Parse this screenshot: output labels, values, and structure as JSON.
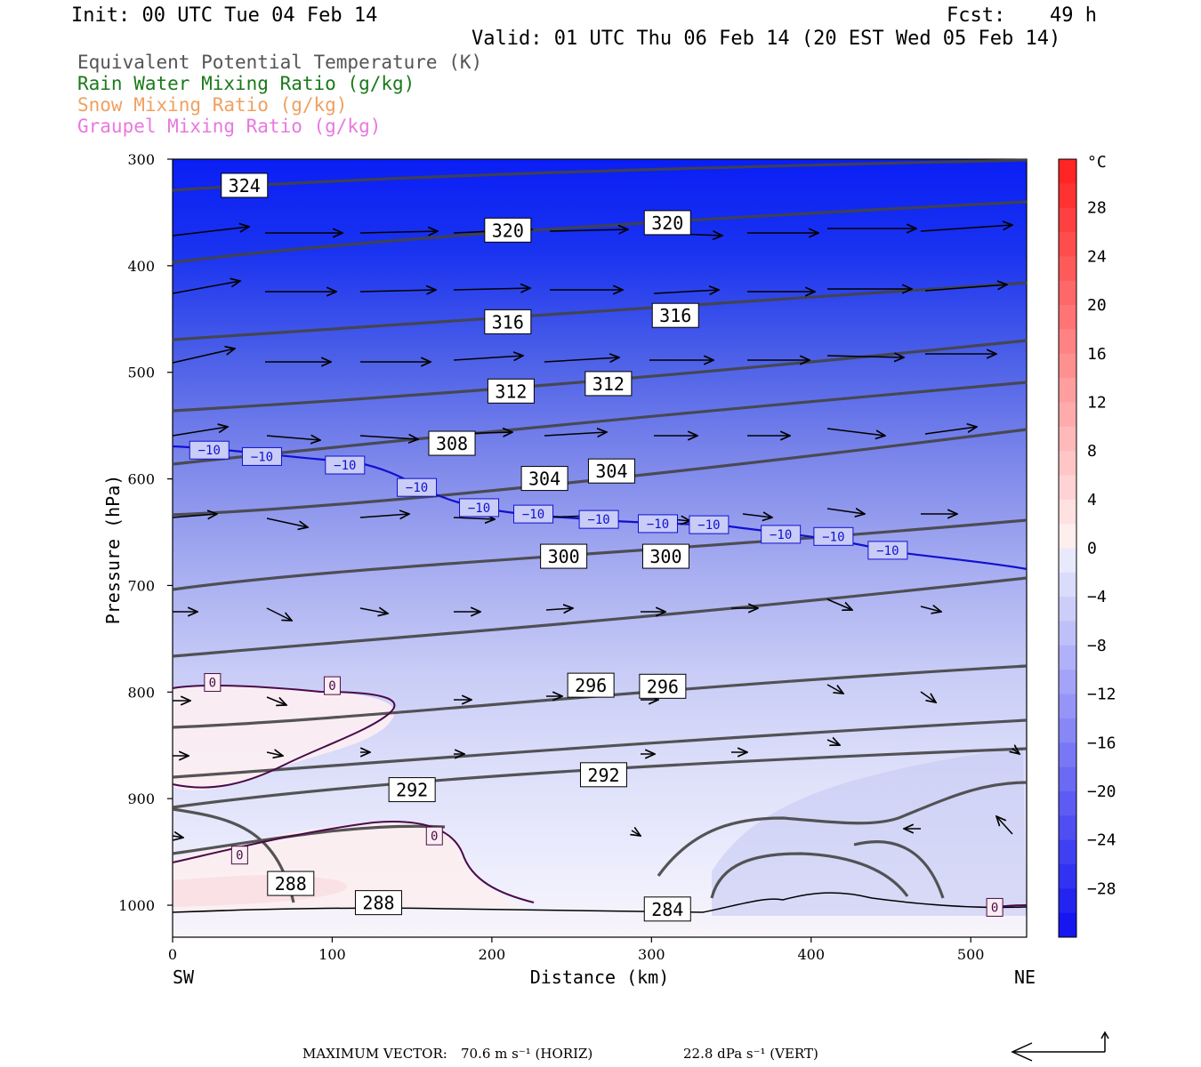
{
  "header": {
    "init": "Init: 00 UTC Tue 04 Feb 14",
    "fcst_label": "Fcst:",
    "fcst_value": "49 h",
    "valid": "Valid: 01 UTC Thu 06 Feb 14 (20 EST Wed 05 Feb 14)"
  },
  "legend": [
    {
      "text": "Equivalent Potential Temperature (K)",
      "color": "#555555"
    },
    {
      "text": "Rain Water Mixing Ratio (g/kg)",
      "color": "#1a7a1a"
    },
    {
      "text": "Snow Mixing Ratio (g/kg)",
      "color": "#f0a060"
    },
    {
      "text": "Graupel Mixing Ratio (g/kg)",
      "color": "#e878e0"
    }
  ],
  "footer": {
    "max_vector_label": "MAXIMUM VECTOR:",
    "horiz": "70.6 m s⁻¹ (HORIZ)",
    "vert": "22.8 dPa s⁻¹ (VERT)"
  },
  "chart_data": {
    "type": "heatmap",
    "xlabel": "Distance (km)",
    "ylabel": "Pressure (hPa)",
    "xlim": [
      0,
      535
    ],
    "ylim": [
      1030,
      300
    ],
    "x_ticks": [
      0,
      100,
      200,
      300,
      400,
      500
    ],
    "y_ticks": [
      300,
      400,
      500,
      600,
      700,
      800,
      900,
      1000
    ],
    "x_end_labels": {
      "left": "SW",
      "right": "NE"
    },
    "colorbar": {
      "unit": "°C",
      "ticks": [
        28,
        24,
        20,
        16,
        12,
        8,
        4,
        0,
        -4,
        -8,
        -12,
        -16,
        -20,
        -24,
        -28
      ],
      "range": [
        -32,
        32
      ]
    },
    "theta_e_labels": [
      {
        "text": "324",
        "x": 45,
        "p": 325
      },
      {
        "text": "320",
        "x": 210,
        "p": 367
      },
      {
        "text": "320",
        "x": 310,
        "p": 360
      },
      {
        "text": "316",
        "x": 210,
        "p": 453
      },
      {
        "text": "316",
        "x": 315,
        "p": 447
      },
      {
        "text": "312",
        "x": 212,
        "p": 518
      },
      {
        "text": "312",
        "x": 273,
        "p": 511
      },
      {
        "text": "308",
        "x": 175,
        "p": 567
      },
      {
        "text": "304",
        "x": 233,
        "p": 600
      },
      {
        "text": "304",
        "x": 275,
        "p": 593
      },
      {
        "text": "300",
        "x": 245,
        "p": 673
      },
      {
        "text": "300",
        "x": 309,
        "p": 673
      },
      {
        "text": "296",
        "x": 262,
        "p": 794
      },
      {
        "text": "296",
        "x": 307,
        "p": 795
      },
      {
        "text": "292",
        "x": 150,
        "p": 892
      },
      {
        "text": "292",
        "x": 270,
        "p": 878
      },
      {
        "text": "288",
        "x": 74,
        "p": 980
      },
      {
        "text": "288",
        "x": 129,
        "p": 998
      },
      {
        "text": "284",
        "x": 310,
        "p": 1004
      }
    ],
    "isotherm_labels": [
      {
        "text": "−10",
        "x": 23,
        "p": 573
      },
      {
        "text": "−10",
        "x": 56,
        "p": 579
      },
      {
        "text": "−10",
        "x": 108,
        "p": 587
      },
      {
        "text": "−10",
        "x": 153,
        "p": 608
      },
      {
        "text": "−10",
        "x": 192,
        "p": 627
      },
      {
        "text": "−10",
        "x": 226,
        "p": 633
      },
      {
        "text": "−10",
        "x": 267,
        "p": 638
      },
      {
        "text": "−10",
        "x": 304,
        "p": 642
      },
      {
        "text": "−10",
        "x": 336,
        "p": 643
      },
      {
        "text": "−10",
        "x": 381,
        "p": 652
      },
      {
        "text": "−10",
        "x": 414,
        "p": 654
      },
      {
        "text": "−10",
        "x": 448,
        "p": 667
      },
      {
        "text": "0",
        "x": 25,
        "p": 791
      },
      {
        "text": "0",
        "x": 100,
        "p": 794
      },
      {
        "text": "0",
        "x": 164,
        "p": 935
      },
      {
        "text": "0",
        "x": 42,
        "p": 953
      },
      {
        "text": "0",
        "x": 515,
        "p": 1002
      }
    ]
  }
}
